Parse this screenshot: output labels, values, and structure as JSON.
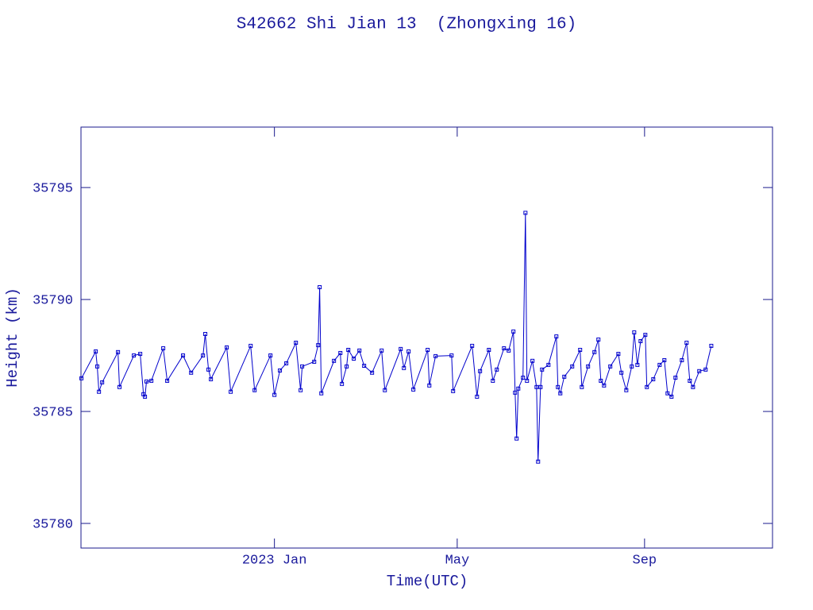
{
  "chart_data": {
    "type": "line",
    "title": "S42662 Shi Jian 13  (Zhongxing 16)",
    "xlabel": "Time(UTC)",
    "ylabel": "Height (km)",
    "x": [
      -126.7,
      -117.3,
      -116.3,
      -115.2,
      -113.1,
      -102.7,
      -101.7,
      -92.3,
      -88.1,
      -86.0,
      -85.0,
      -84.0,
      -80.8,
      -73.0,
      -70.4,
      -60.0,
      -54.7,
      -46.9,
      -45.4,
      -43.3,
      -41.7,
      -31.3,
      -28.7,
      -15.6,
      -13.0,
      -2.6,
      0,
      3.6,
      7.8,
      14.1,
      17.2,
      18.2,
      26.1,
      28.7,
      29.7,
      30.8,
      39.1,
      43.3,
      44.3,
      47.4,
      48.5,
      52.1,
      55.8,
      58.9,
      64.1,
      70.4,
      72.5,
      82.9,
      85.0,
      88.1,
      91.2,
      100.6,
      101.7,
      105.8,
      116.3,
      117.3,
      129.8,
      133.0,
      135.0,
      140.8,
      143.4,
      146.0,
      150.7,
      153.8,
      156.9,
      158.0,
      159.0,
      160.1,
      163.2,
      164.8,
      165.8,
      169.4,
      172.1,
      173.1,
      174.7,
      175.7,
      179.9,
      185.1,
      186.1,
      187.7,
      190.3,
      195.5,
      200.7,
      201.8,
      205.9,
      210.1,
      212.7,
      214.3,
      216.4,
      220.5,
      225.8,
      227.8,
      231.0,
      234.6,
      236.2,
      238.3,
      240.4,
      243.5,
      244.5,
      248.7,
      252.9,
      256.0,
      258.1,
      260.7,
      263.3,
      267.5,
      270.6,
      272.7,
      274.8,
      278.9,
      283.1,
      286.8
    ],
    "series": [
      {
        "name": "S42662",
        "color": "#0000cc",
        "values": [
          35786.48,
          35787.68,
          35787.01,
          35785.88,
          35786.3,
          35787.65,
          35786.09,
          35787.5,
          35787.57,
          35785.77,
          35785.66,
          35786.34,
          35786.37,
          35787.82,
          35786.37,
          35787.5,
          35786.73,
          35787.5,
          35788.46,
          35786.87,
          35786.44,
          35787.86,
          35785.88,
          35787.93,
          35785.95,
          35787.5,
          35785.74,
          35786.83,
          35787.15,
          35788.07,
          35785.95,
          35787.01,
          35787.22,
          35787.96,
          35790.55,
          35785.81,
          35787.26,
          35787.61,
          35786.23,
          35787.01,
          35787.75,
          35787.36,
          35787.72,
          35787.04,
          35786.73,
          35787.72,
          35785.95,
          35787.79,
          35786.94,
          35787.68,
          35785.98,
          35787.75,
          35786.16,
          35787.47,
          35787.5,
          35785.91,
          35787.93,
          35785.66,
          35786.8,
          35787.75,
          35786.37,
          35786.87,
          35787.82,
          35787.72,
          35788.57,
          35785.84,
          35783.79,
          35786.02,
          35786.51,
          35793.87,
          35786.37,
          35787.26,
          35786.09,
          35782.76,
          35786.09,
          35786.87,
          35787.08,
          35788.35,
          35786.09,
          35785.81,
          35786.55,
          35787.01,
          35787.75,
          35786.09,
          35787.01,
          35787.65,
          35788.21,
          35786.37,
          35786.16,
          35787.01,
          35787.57,
          35786.73,
          35785.95,
          35787.01,
          35788.53,
          35787.08,
          35788.14,
          35788.42,
          35786.09,
          35786.44,
          35787.08,
          35787.29,
          35785.81,
          35785.66,
          35786.51,
          35787.29,
          35788.07,
          35786.37,
          35786.09,
          35786.8,
          35786.87,
          35787.93
        ]
      }
    ],
    "xlim": [
      -127,
      327
    ],
    "xticks": [
      {
        "value": 0,
        "label": "2023 Jan"
      },
      {
        "value": 120,
        "label": "May"
      },
      {
        "value": 243,
        "label": "Sep"
      }
    ],
    "ylim": [
      35778.9,
      35797.7
    ],
    "yticks": [
      35780,
      35785,
      35790,
      35795
    ],
    "axis_color": "#1a1a8c",
    "text_color": "#1a1a9c"
  }
}
